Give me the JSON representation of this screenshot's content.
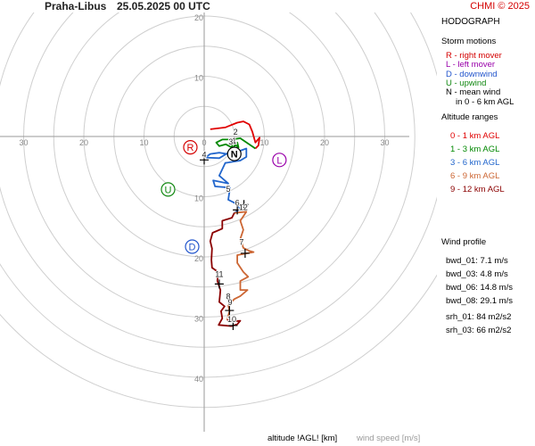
{
  "header": {
    "station": "Praha-Libus",
    "datetime": "25.05.2025 00 UTC",
    "copyright": "CHMI © 2025"
  },
  "legend": {
    "title": "HODOGRAPH",
    "storm_title": "Storm motions",
    "storm_items": [
      {
        "text": "R - right mover",
        "color": "#d40000"
      },
      {
        "text": "L - left mover",
        "color": "#9900aa"
      },
      {
        "text": "D - downwind",
        "color": "#2255cc"
      },
      {
        "text": "U - upwind",
        "color": "#118811"
      },
      {
        "text": "N - mean wind",
        "color": "#000000"
      },
      {
        "text": "in 0 - 6 km AGL",
        "color": "#000000"
      }
    ],
    "alt_title": "Altitude ranges",
    "alt_items": [
      {
        "text": "0 - 1 km AGL",
        "color": "#e00000"
      },
      {
        "text": "1 - 3 km AGL",
        "color": "#008800"
      },
      {
        "text": "3 - 6 km AGL",
        "color": "#2266cc"
      },
      {
        "text": "6 - 9 km AGL",
        "color": "#cc6633"
      },
      {
        "text": "9 - 12 km AGL",
        "color": "#8b0000"
      }
    ],
    "profile_title": "Wind profile",
    "profile_items": [
      "bwd_01: 7.1 m/s",
      "bwd_03: 4.8 m/s",
      "bwd_06: 14.8 m/s",
      "bwd_08: 29.1 m/s"
    ],
    "srh_items": [
      "srh_01: 84 m2/s2",
      "srh_03: 66 m2/s2"
    ]
  },
  "footer": {
    "altitude_label": "altitude !AGL! [km]",
    "windspeed_label": "wind speed [m/s]"
  },
  "chart_data": {
    "type": "hodograph",
    "ring_radii": [
      5,
      10,
      15,
      20,
      25,
      30,
      35,
      40,
      45
    ],
    "x_tick_labels": [
      "30",
      "20",
      "10",
      "0",
      "10",
      "20",
      "30"
    ],
    "x_tick_values": [
      -30,
      -20,
      -10,
      0,
      10,
      20,
      30
    ],
    "y_tick_labels": [
      "20",
      "10",
      "0",
      "10",
      "20",
      "30",
      "40"
    ],
    "y_tick_values": [
      20,
      10,
      0,
      -10,
      -20,
      -30,
      -40
    ],
    "segments": [
      {
        "range": "0 - 1 km AGL",
        "color": "#e00000",
        "points": [
          [
            1.0,
            1.2
          ],
          [
            3.5,
            1.5
          ],
          [
            5.5,
            2.3
          ],
          [
            6.5,
            2.5
          ],
          [
            7.5,
            2.0
          ],
          [
            8.0,
            0.8
          ],
          [
            8.5,
            -1.0
          ],
          [
            9.2,
            -0.2
          ],
          [
            9.0,
            -1.5
          ],
          [
            8.5,
            -2.0
          ]
        ]
      },
      {
        "range": "1 - 3 km AGL",
        "color": "#008800",
        "points": [
          [
            8.5,
            -2.0
          ],
          [
            6.0,
            -0.3
          ],
          [
            4.5,
            -0.5
          ],
          [
            3.0,
            -0.5
          ],
          [
            2.0,
            -1.0
          ],
          [
            2.5,
            -1.6
          ],
          [
            3.6,
            -1.3
          ],
          [
            4.7,
            -1.9
          ],
          [
            4.5,
            -0.9
          ],
          [
            5.7,
            -1.8
          ],
          [
            5.5,
            -1.0
          ],
          [
            4.4,
            -2.4
          ],
          [
            4.5,
            -3.0
          ]
        ]
      },
      {
        "range": "3 - 6 km AGL",
        "color": "#2266cc",
        "points": [
          [
            4.5,
            -3.0
          ],
          [
            2.5,
            -2.7
          ],
          [
            1.0,
            -2.9
          ],
          [
            0.2,
            -3.5
          ],
          [
            2.5,
            -3.6
          ],
          [
            4.0,
            -2.7
          ],
          [
            5.3,
            -2.6
          ],
          [
            7.0,
            -2.0
          ],
          [
            7.0,
            -3.4
          ],
          [
            6.0,
            -4.0
          ],
          [
            3.5,
            -4.4
          ],
          [
            2.5,
            -6.5
          ],
          [
            4.0,
            -7.8
          ],
          [
            1.5,
            -7.3
          ],
          [
            1.8,
            -8.3
          ],
          [
            4.3,
            -8.5
          ],
          [
            4.0,
            -10.5
          ],
          [
            5.0,
            -11.0
          ],
          [
            5.5,
            -11.5
          ],
          [
            6.0,
            -12.0
          ],
          [
            5.0,
            -12.7
          ]
        ]
      },
      {
        "range": "6 - 9 km AGL",
        "color": "#cc6633",
        "points": [
          [
            5.0,
            -12.7
          ],
          [
            7.0,
            -12.5
          ],
          [
            6.0,
            -14.0
          ],
          [
            6.5,
            -15.5
          ],
          [
            6.0,
            -17.0
          ],
          [
            6.5,
            -18.5
          ],
          [
            7.5,
            -19.0
          ],
          [
            8.2,
            -19.2
          ],
          [
            5.5,
            -19.7
          ],
          [
            5.5,
            -21.0
          ],
          [
            6.5,
            -22.5
          ],
          [
            7.3,
            -23.3
          ],
          [
            6.0,
            -24.0
          ],
          [
            6.0,
            -25.5
          ],
          [
            7.2,
            -25.5
          ],
          [
            6.0,
            -26.5
          ],
          [
            5.0,
            -27.0
          ],
          [
            4.0,
            -28.0
          ],
          [
            4.2,
            -29.0
          ],
          [
            3.8,
            -30.5
          ]
        ]
      },
      {
        "range": "9 - 12 km AGL",
        "color": "#8b0000",
        "points": [
          [
            3.8,
            -30.5
          ],
          [
            5.0,
            -30.7
          ],
          [
            6.0,
            -30.6
          ],
          [
            5.5,
            -31.2
          ],
          [
            4.5,
            -31.5
          ],
          [
            2.4,
            -31.3
          ],
          [
            3.0,
            -30.2
          ],
          [
            2.8,
            -29.0
          ],
          [
            3.4,
            -28.2
          ],
          [
            2.5,
            -27.5
          ],
          [
            2.6,
            -26.5
          ],
          [
            2.7,
            -25.5
          ],
          [
            2.2,
            -24.0
          ],
          [
            2.3,
            -22.5
          ],
          [
            1.3,
            -21.8
          ],
          [
            1.2,
            -20.5
          ],
          [
            1.3,
            -18.6
          ],
          [
            1.0,
            -17.4
          ],
          [
            1.4,
            -16.0
          ],
          [
            3.0,
            -15.3
          ],
          [
            3.0,
            -14.0
          ],
          [
            4.6,
            -13.5
          ],
          [
            5.0,
            -12.7
          ]
        ]
      }
    ],
    "height_markers": [
      {
        "label": "1",
        "u": 5.0,
        "v": -1.2
      },
      {
        "label": "2",
        "u": 5.2,
        "v": 0.3
      },
      {
        "label": "3",
        "u": 4.4,
        "v": -1.3
      },
      {
        "label": "4",
        "u": 0.0,
        "v": -3.5
      },
      {
        "label": "5",
        "u": 4.0,
        "v": -9.2
      },
      {
        "label": "6",
        "u": 5.5,
        "v": -11.5
      },
      {
        "label": "12",
        "u": 6.5,
        "v": -12.2
      },
      {
        "label": "7",
        "u": 6.2,
        "v": -18.0
      },
      {
        "label": "11",
        "u": 2.5,
        "v": -23.3
      },
      {
        "label": "8",
        "u": 4.0,
        "v": -27.0
      },
      {
        "label": "9",
        "u": 4.3,
        "v": -28.0
      },
      {
        "label": "10",
        "u": 4.6,
        "v": -30.8
      }
    ],
    "crosshairs": [
      {
        "u": 0.0,
        "v": -3.9
      },
      {
        "u": 5.5,
        "v": -12.2
      },
      {
        "u": 6.6,
        "v": -11.3
      },
      {
        "u": 6.8,
        "v": -19.4
      },
      {
        "u": 2.5,
        "v": -24.5
      },
      {
        "u": 4.2,
        "v": -28.9
      },
      {
        "u": 4.8,
        "v": -31.4
      }
    ],
    "storm_motions": [
      {
        "label": "R",
        "u": -2.3,
        "v": -1.8,
        "color": "#d40000"
      },
      {
        "label": "L",
        "u": 12.5,
        "v": -3.9,
        "color": "#9900aa"
      },
      {
        "label": "U",
        "u": -6.0,
        "v": -8.8,
        "color": "#118811"
      },
      {
        "label": "D",
        "u": -2.0,
        "v": -18.3,
        "color": "#2255cc"
      },
      {
        "label": "N",
        "u": 5.0,
        "v": -2.9,
        "color": "#000000"
      }
    ]
  }
}
